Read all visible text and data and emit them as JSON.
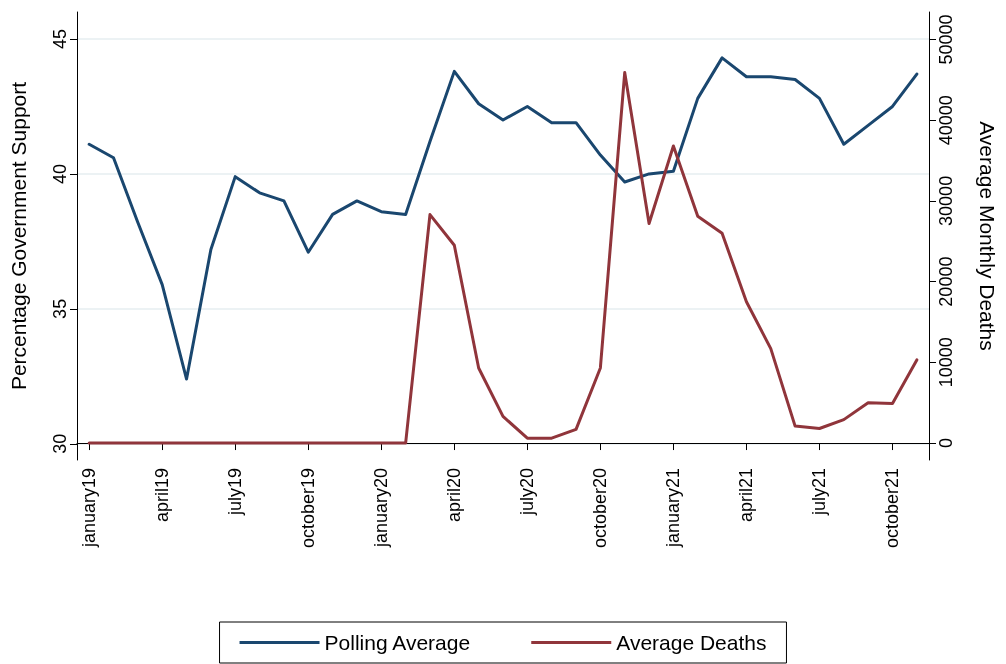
{
  "chart_data": {
    "type": "line",
    "categories": [
      "january19",
      null,
      null,
      "april19",
      null,
      null,
      "july19",
      null,
      null,
      "october19",
      null,
      null,
      "january20",
      null,
      null,
      "april20",
      null,
      null,
      "july20",
      null,
      null,
      "october20",
      null,
      null,
      "january21",
      null,
      null,
      "april21",
      null,
      null,
      "july21",
      null,
      null,
      "october21",
      null
    ],
    "series": [
      {
        "name": "Polling Average",
        "color": "#1a476f",
        "values": [
          41.1,
          40.6,
          38.2,
          35.9,
          32.4,
          37.2,
          39.9,
          39.3,
          39.0,
          37.1,
          38.5,
          39.0,
          38.6,
          38.5,
          41.2,
          43.8,
          42.6,
          42.0,
          42.5,
          41.9,
          41.9,
          40.7,
          39.7,
          40.0,
          40.1,
          42.8,
          44.3,
          43.6,
          43.6,
          43.5,
          42.8,
          41.1,
          41.8,
          42.5,
          43.7
        ]
      },
      {
        "name": "Average Deaths",
        "color": "#90353b",
        "axis": "y2",
        "values": [
          0,
          0,
          0,
          0,
          0,
          0,
          0,
          0,
          0,
          0,
          0,
          0,
          0,
          0,
          28300,
          24500,
          9300,
          3300,
          600,
          600,
          1700,
          9300,
          45900,
          27200,
          36800,
          28100,
          26000,
          17500,
          11700,
          2100,
          1800,
          2900,
          5000,
          4900,
          10300
        ]
      }
    ],
    "ylabel": "Percentage Government Support",
    "y2label": "Average Monthly Deaths",
    "ylim": [
      29.4,
      46
    ],
    "yticks": [
      30,
      35,
      40,
      45
    ],
    "y2lim": [
      -2100,
      53400
    ],
    "y2ticks": [
      0,
      10000,
      20000,
      30000,
      40000,
      50000
    ],
    "grid": "y",
    "legend": "bottom",
    "marker": "none",
    "line_style": "solid"
  }
}
